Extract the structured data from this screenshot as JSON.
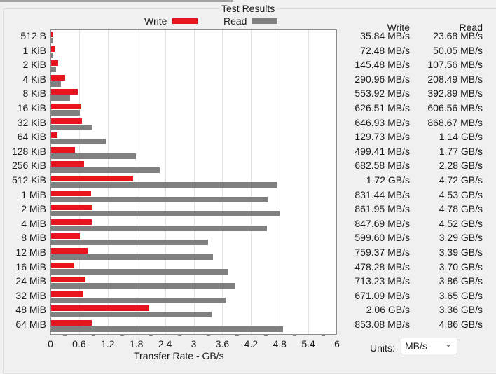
{
  "title": "Test Results",
  "legend": {
    "write_label": "Write",
    "read_label": "Read",
    "write_color": "#e8141e",
    "read_color": "#808080"
  },
  "table": {
    "write_header": "Write",
    "read_header": "Read",
    "rows": [
      {
        "size": "512 B",
        "write": "35.84 MB/s",
        "read": "23.68 MB/s"
      },
      {
        "size": "1 KiB",
        "write": "72.48 MB/s",
        "read": "50.05 MB/s"
      },
      {
        "size": "2 KiB",
        "write": "145.48 MB/s",
        "read": "107.56 MB/s"
      },
      {
        "size": "4 KiB",
        "write": "290.96 MB/s",
        "read": "208.49 MB/s"
      },
      {
        "size": "8 KiB",
        "write": "553.92 MB/s",
        "read": "392.89 MB/s"
      },
      {
        "size": "16 KiB",
        "write": "626.51 MB/s",
        "read": "606.56 MB/s"
      },
      {
        "size": "32 KiB",
        "write": "646.93 MB/s",
        "read": "868.67 MB/s"
      },
      {
        "size": "64 KiB",
        "write": "129.73 MB/s",
        "read": "1.14 GB/s"
      },
      {
        "size": "128 KiB",
        "write": "499.41 MB/s",
        "read": "1.77 GB/s"
      },
      {
        "size": "256 KiB",
        "write": "682.58 MB/s",
        "read": "2.28 GB/s"
      },
      {
        "size": "512 KiB",
        "write": "1.72 GB/s",
        "read": "4.72 GB/s"
      },
      {
        "size": "1 MiB",
        "write": "831.44 MB/s",
        "read": "4.53 GB/s"
      },
      {
        "size": "2 MiB",
        "write": "861.95 MB/s",
        "read": "4.78 GB/s"
      },
      {
        "size": "4 MiB",
        "write": "847.69 MB/s",
        "read": "4.52 GB/s"
      },
      {
        "size": "8 MiB",
        "write": "599.60 MB/s",
        "read": "3.29 GB/s"
      },
      {
        "size": "12 MiB",
        "write": "759.37 MB/s",
        "read": "3.39 GB/s"
      },
      {
        "size": "16 MiB",
        "write": "478.28 MB/s",
        "read": "3.70 GB/s"
      },
      {
        "size": "24 MiB",
        "write": "713.23 MB/s",
        "read": "3.86 GB/s"
      },
      {
        "size": "32 MiB",
        "write": "671.09 MB/s",
        "read": "3.65 GB/s"
      },
      {
        "size": "48 MiB",
        "write": "2.06 GB/s",
        "read": "3.36 GB/s"
      },
      {
        "size": "64 MiB",
        "write": "853.08 MB/s",
        "read": "4.86 GB/s"
      }
    ]
  },
  "units": {
    "label": "Units:",
    "value": "MB/s"
  },
  "chart_data": {
    "type": "bar",
    "orientation": "horizontal",
    "title": "Test Results",
    "xlabel": "Transfer Rate - GB/s",
    "ylabel": "",
    "xlim": [
      0,
      6
    ],
    "xticks": [
      "0",
      "0.6",
      "1.2",
      "1.8",
      "2.4",
      "3",
      "3.6",
      "4.2",
      "4.8",
      "5.4",
      "6"
    ],
    "grid": true,
    "legend_position": "top",
    "categories": [
      "512 B",
      "1 KiB",
      "2 KiB",
      "4 KiB",
      "8 KiB",
      "16 KiB",
      "32 KiB",
      "64 KiB",
      "128 KiB",
      "256 KiB",
      "512 KiB",
      "1 MiB",
      "2 MiB",
      "4 MiB",
      "8 MiB",
      "12 MiB",
      "16 MiB",
      "24 MiB",
      "32 MiB",
      "48 MiB",
      "64 MiB"
    ],
    "series": [
      {
        "name": "Write",
        "color": "#e8141e",
        "values": [
          0.03584,
          0.07248,
          0.14548,
          0.29096,
          0.55392,
          0.62651,
          0.64693,
          0.12973,
          0.49941,
          0.68258,
          1.72,
          0.83144,
          0.86195,
          0.84769,
          0.5996,
          0.75937,
          0.47828,
          0.71323,
          0.67109,
          2.06,
          0.85308
        ]
      },
      {
        "name": "Read",
        "color": "#808080",
        "values": [
          0.02368,
          0.05005,
          0.10756,
          0.20849,
          0.39289,
          0.60656,
          0.86867,
          1.14,
          1.77,
          2.28,
          4.72,
          4.53,
          4.78,
          4.52,
          3.29,
          3.39,
          3.7,
          3.86,
          3.65,
          3.36,
          4.86
        ]
      }
    ]
  }
}
